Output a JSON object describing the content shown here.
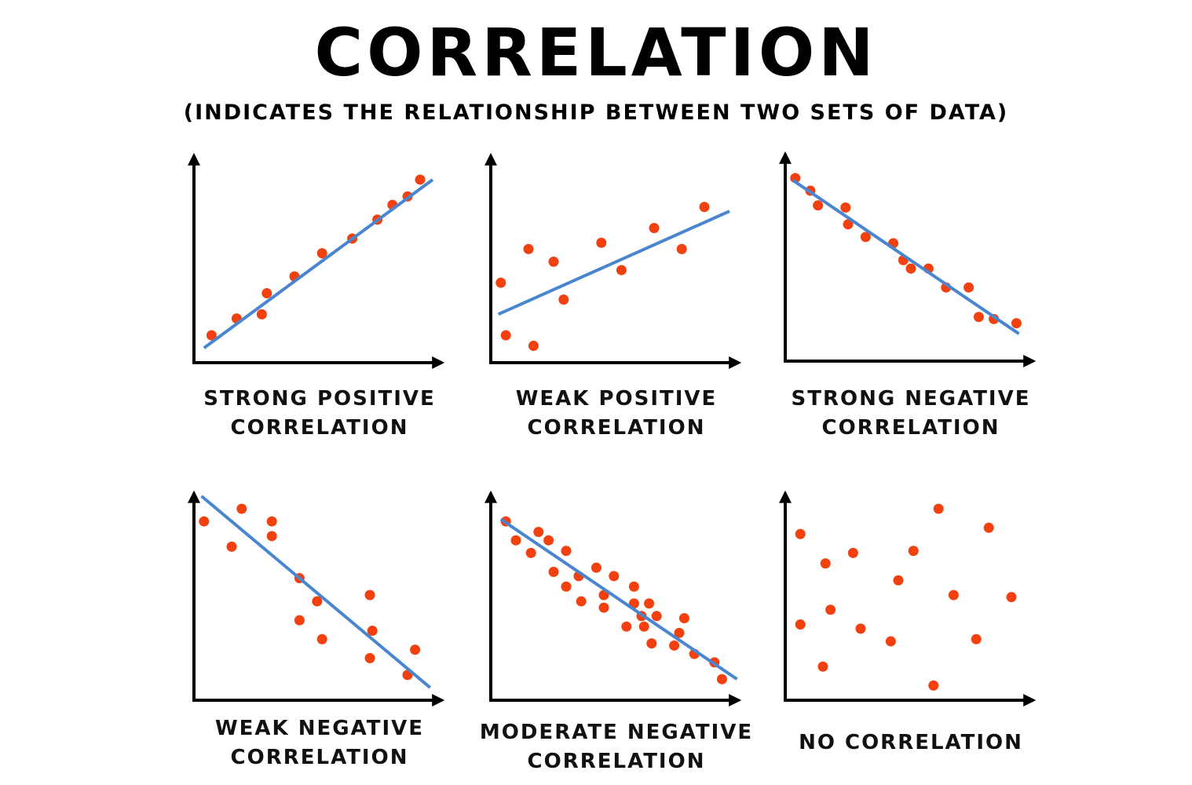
{
  "title": "CORRELATION",
  "subtitle": "(INDICATES THE RELATIONSHIP BETWEEN TWO SETS OF DATA)",
  "chart_data": [
    {
      "type": "scatter",
      "title": "STRONG POSITIVE CORRELATION",
      "color": "#f2400f",
      "xlim": [
        0,
        100
      ],
      "ylim": [
        0,
        100
      ],
      "x": [
        7,
        17,
        27,
        29,
        40,
        51,
        63,
        73,
        79,
        85,
        90
      ],
      "y": [
        13,
        21,
        23,
        33,
        41,
        52,
        59,
        68,
        75,
        79,
        87
      ],
      "trend_line": {
        "x": [
          4,
          95
        ],
        "y": [
          7,
          87
        ],
        "color": "#4a86d0"
      }
    },
    {
      "type": "scatter",
      "title": "WEAK POSITIVE CORRELATION",
      "color": "#f2400f",
      "xlim": [
        0,
        100
      ],
      "ylim": [
        0,
        100
      ],
      "x": [
        4,
        6,
        15,
        17,
        25,
        29,
        44,
        52,
        65,
        76,
        85
      ],
      "y": [
        38,
        13,
        54,
        8,
        48,
        30,
        57,
        44,
        64,
        54,
        74
      ],
      "trend_line": {
        "x": [
          3,
          95
        ],
        "y": [
          23,
          72
        ],
        "color": "#4a86d0"
      }
    },
    {
      "type": "scatter",
      "title": "STRONG NEGATIVE CORRELATION",
      "color": "#f2400f",
      "xlim": [
        0,
        100
      ],
      "ylim": [
        0,
        100
      ],
      "x": [
        4,
        10,
        13,
        24,
        25,
        32,
        43,
        47,
        50,
        57,
        64,
        73,
        77,
        83,
        92
      ],
      "y": [
        87,
        81,
        74,
        73,
        65,
        59,
        56,
        48,
        44,
        44,
        35,
        35,
        21,
        20,
        18
      ],
      "trend_line": {
        "x": [
          3,
          93
        ],
        "y": [
          86,
          13
        ],
        "color": "#4a86d0"
      }
    },
    {
      "type": "scatter",
      "title": "WEAK NEGATIVE CORRELATION",
      "color": "#f2400f",
      "xlim": [
        0,
        100
      ],
      "ylim": [
        0,
        100
      ],
      "x": [
        4,
        15,
        19,
        31,
        31,
        42,
        49,
        42,
        51,
        70,
        71,
        70,
        88,
        85
      ],
      "y": [
        85,
        73,
        91,
        85,
        78,
        58,
        47,
        38,
        29,
        50,
        33,
        20,
        24,
        12
      ],
      "trend_line": {
        "x": [
          3,
          94
        ],
        "y": [
          97,
          6
        ],
        "color": "#4a86d0"
      }
    },
    {
      "type": "scatter",
      "title": "MODERATE NEGATIVE CORRELATION",
      "color": "#f2400f",
      "xlim": [
        0,
        100
      ],
      "ylim": [
        0,
        100
      ],
      "x": [
        6,
        10,
        16,
        19,
        23,
        30,
        25,
        35,
        30,
        36,
        42,
        49,
        45,
        45,
        57,
        57,
        63,
        60,
        54,
        66,
        61,
        77,
        75,
        64,
        73,
        81,
        89,
        92
      ],
      "y": [
        85,
        76,
        70,
        80,
        76,
        71,
        61,
        59,
        54,
        47,
        63,
        59,
        50,
        44,
        54,
        46,
        46,
        40,
        35,
        40,
        35,
        39,
        32,
        27,
        26,
        22,
        18,
        10
      ],
      "trend_line": {
        "x": [
          4,
          98
        ],
        "y": [
          86,
          10
        ],
        "color": "#4a86d0"
      }
    },
    {
      "type": "scatter",
      "title": "NO CORRELATION",
      "color": "#f2400f",
      "xlim": [
        0,
        100
      ],
      "ylim": [
        0,
        100
      ],
      "x": [
        6,
        16,
        27,
        6,
        18,
        15,
        30,
        45,
        51,
        42,
        61,
        67,
        81,
        76,
        90,
        59
      ],
      "y": [
        79,
        65,
        70,
        36,
        43,
        16,
        34,
        57,
        71,
        28,
        91,
        50,
        82,
        29,
        49,
        7
      ]
    }
  ]
}
